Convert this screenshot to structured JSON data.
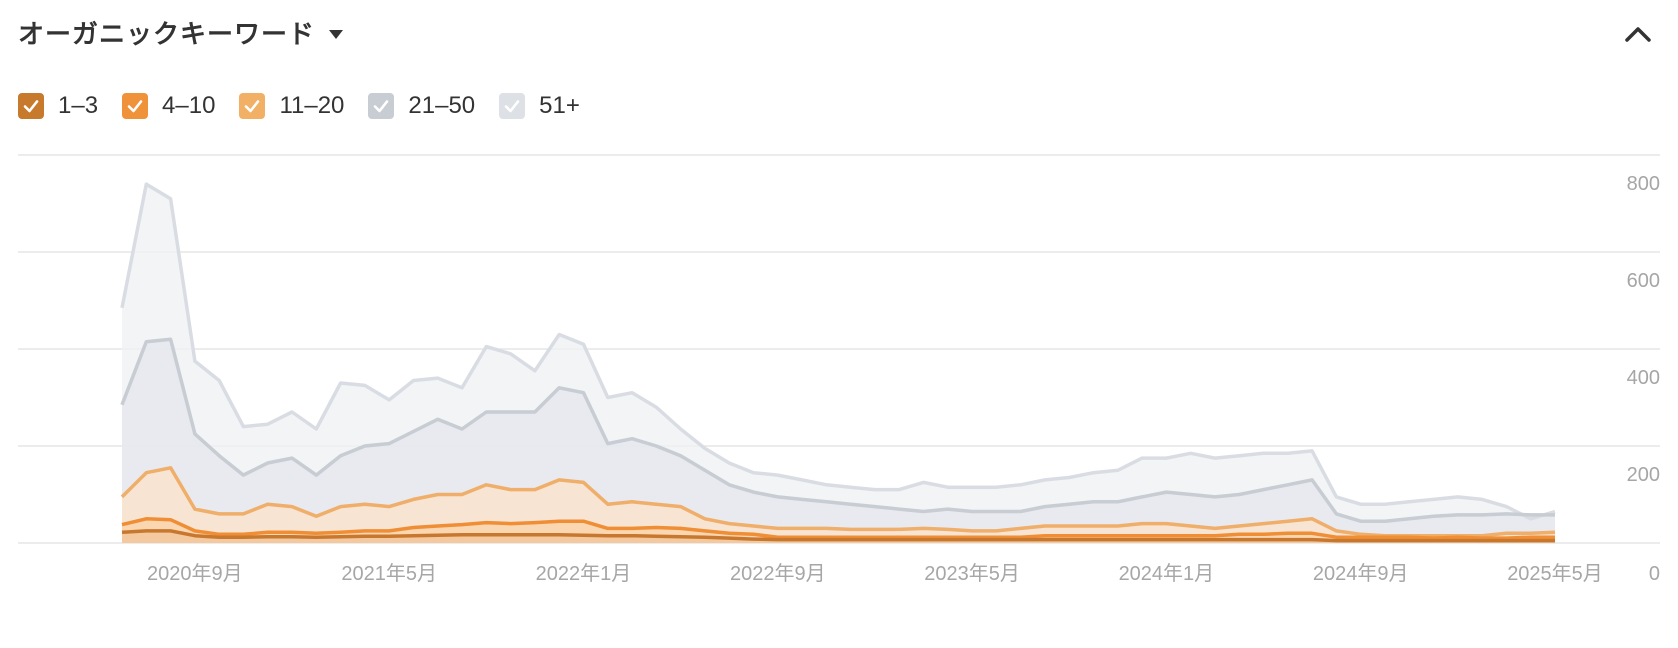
{
  "header": {
    "title": "オーガニックキーワード"
  },
  "legend": [
    {
      "label": "1–3",
      "color": "#c87a2c"
    },
    {
      "label": "4–10",
      "color": "#f0923a"
    },
    {
      "label": "11–20",
      "color": "#f2b066"
    },
    {
      "label": "21–50",
      "color": "#c8ccd3"
    },
    {
      "label": "51+",
      "color": "#dde0e5"
    }
  ],
  "chart_data": {
    "type": "area",
    "stacked": false,
    "y_ticks": [
      "800",
      "600",
      "400",
      "200",
      "0"
    ],
    "ylim": [
      0,
      800
    ],
    "x_ticks": [
      "2020年9月",
      "2021年5月",
      "2022年1月",
      "2022年9月",
      "2023年5月",
      "2024年1月",
      "2024年9月",
      "2025年5月"
    ],
    "x_tick_index": [
      3,
      11,
      19,
      27,
      35,
      43,
      51,
      59
    ],
    "x": [
      "2020-06",
      "2020-07",
      "2020-08",
      "2020-09",
      "2020-10",
      "2020-11",
      "2020-12",
      "2021-01",
      "2021-02",
      "2021-03",
      "2021-04",
      "2021-05",
      "2021-06",
      "2021-07",
      "2021-08",
      "2021-09",
      "2021-10",
      "2021-11",
      "2021-12",
      "2022-01",
      "2022-02",
      "2022-03",
      "2022-04",
      "2022-05",
      "2022-06",
      "2022-07",
      "2022-08",
      "2022-09",
      "2022-10",
      "2022-11",
      "2022-12",
      "2023-01",
      "2023-02",
      "2023-03",
      "2023-04",
      "2023-05",
      "2023-06",
      "2023-07",
      "2023-08",
      "2023-09",
      "2023-10",
      "2023-11",
      "2023-12",
      "2024-01",
      "2024-02",
      "2024-03",
      "2024-04",
      "2024-05",
      "2024-06",
      "2024-07",
      "2024-08",
      "2024-09",
      "2024-10",
      "2024-11",
      "2024-12",
      "2025-01",
      "2025-02",
      "2025-03",
      "2025-04",
      "2025-05"
    ],
    "series": [
      {
        "name": "51+",
        "color": "#dde0e5",
        "values": [
          485,
          740,
          710,
          375,
          335,
          240,
          245,
          270,
          235,
          330,
          325,
          295,
          335,
          340,
          320,
          405,
          390,
          355,
          430,
          410,
          300,
          310,
          280,
          235,
          195,
          165,
          145,
          140,
          130,
          120,
          115,
          110,
          110,
          125,
          115,
          115,
          115,
          120,
          130,
          135,
          145,
          150,
          175,
          175,
          185,
          175,
          180,
          185,
          185,
          190,
          95,
          80,
          80,
          85,
          90,
          95,
          90,
          75,
          50,
          65
        ]
      },
      {
        "name": "21–50",
        "color": "#c8ccd3",
        "values": [
          285,
          415,
          420,
          225,
          180,
          140,
          165,
          175,
          140,
          180,
          200,
          205,
          230,
          255,
          235,
          270,
          270,
          270,
          320,
          310,
          205,
          215,
          200,
          180,
          150,
          120,
          105,
          95,
          90,
          85,
          80,
          75,
          70,
          65,
          70,
          65,
          65,
          65,
          75,
          80,
          85,
          85,
          95,
          105,
          100,
          95,
          100,
          110,
          120,
          130,
          60,
          45,
          45,
          50,
          55,
          58,
          58,
          60,
          58,
          58
        ]
      },
      {
        "name": "11–20",
        "color": "#f2b066",
        "values": [
          95,
          145,
          155,
          70,
          60,
          60,
          80,
          75,
          55,
          75,
          80,
          75,
          90,
          100,
          100,
          120,
          110,
          110,
          130,
          125,
          80,
          85,
          80,
          75,
          50,
          40,
          35,
          30,
          30,
          30,
          28,
          28,
          28,
          30,
          28,
          25,
          25,
          30,
          35,
          35,
          35,
          35,
          40,
          40,
          35,
          30,
          35,
          40,
          45,
          50,
          25,
          18,
          15,
          15,
          15,
          15,
          15,
          20,
          20,
          22
        ]
      },
      {
        "name": "4–10",
        "color": "#f0923a",
        "values": [
          38,
          50,
          48,
          25,
          18,
          18,
          22,
          22,
          20,
          22,
          25,
          25,
          32,
          35,
          38,
          42,
          40,
          42,
          45,
          45,
          30,
          30,
          32,
          30,
          25,
          20,
          18,
          12,
          12,
          12,
          12,
          12,
          12,
          12,
          12,
          12,
          12,
          12,
          15,
          15,
          15,
          15,
          15,
          15,
          15,
          15,
          18,
          18,
          20,
          20,
          12,
          12,
          12,
          12,
          10,
          12,
          10,
          10,
          12,
          12
        ]
      },
      {
        "name": "1–3",
        "color": "#c87a2c",
        "values": [
          22,
          25,
          25,
          15,
          12,
          12,
          13,
          13,
          12,
          13,
          14,
          14,
          15,
          16,
          17,
          17,
          17,
          17,
          17,
          16,
          15,
          15,
          14,
          13,
          12,
          10,
          8,
          7,
          7,
          7,
          7,
          7,
          7,
          7,
          7,
          7,
          7,
          7,
          7,
          7,
          7,
          7,
          7,
          7,
          7,
          7,
          7,
          7,
          7,
          7,
          5,
          5,
          5,
          5,
          5,
          5,
          5,
          5,
          5,
          5
        ]
      }
    ]
  }
}
